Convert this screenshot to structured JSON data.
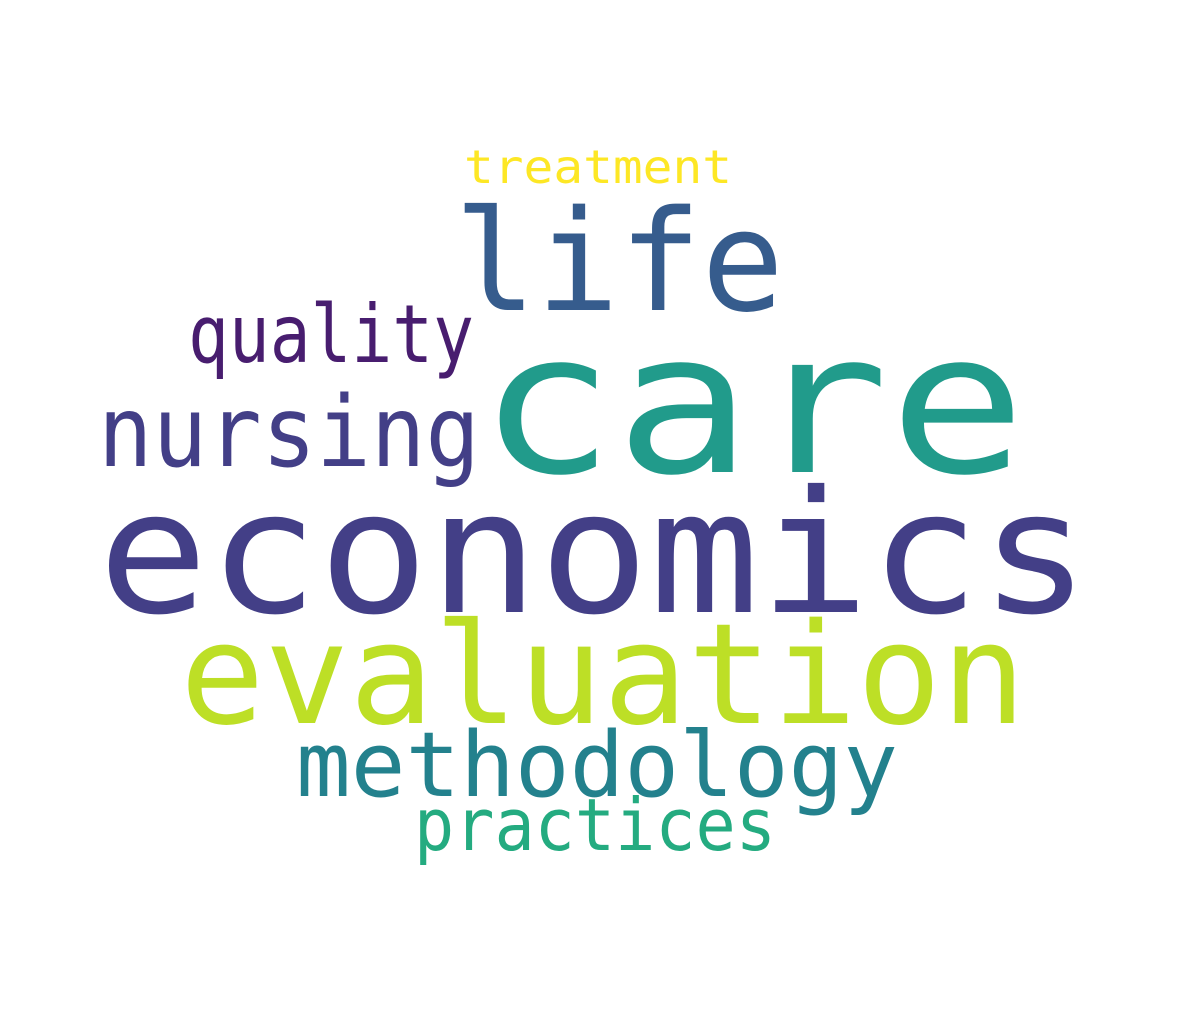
{
  "word_cloud": {
    "words": [
      {
        "text": "economics",
        "color": "#433f87"
      },
      {
        "text": "care",
        "color": "#219b8b"
      },
      {
        "text": "evaluation",
        "color": "#bddf26"
      },
      {
        "text": "life",
        "color": "#365c8d"
      },
      {
        "text": "nursing",
        "color": "#433f87"
      },
      {
        "text": "methodology",
        "color": "#23818d"
      },
      {
        "text": "quality",
        "color": "#481d6f"
      },
      {
        "text": "practices",
        "color": "#24ab80"
      },
      {
        "text": "treatment",
        "color": "#fde725"
      }
    ]
  }
}
